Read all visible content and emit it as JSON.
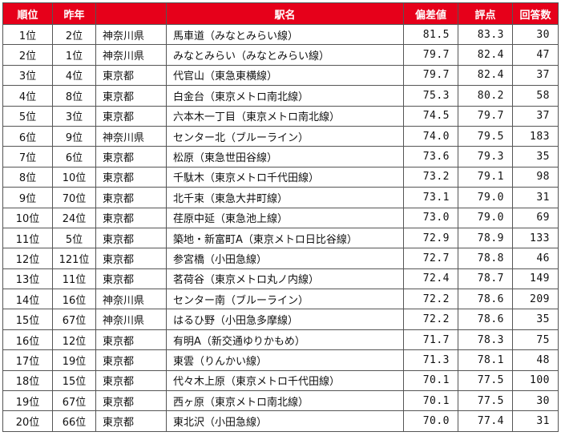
{
  "headers": {
    "rank": "順位",
    "prev": "昨年",
    "pref": "",
    "station": "駅名",
    "deviation": "偏差値",
    "score": "評点",
    "count": "回答数"
  },
  "rows": [
    {
      "rank": "1位",
      "prev": "2位",
      "pref": "神奈川県",
      "station": "馬車道（みなとみらい線）",
      "deviation": "81.5",
      "score": "83.3",
      "count": "30"
    },
    {
      "rank": "2位",
      "prev": "1位",
      "pref": "神奈川県",
      "station": "みなとみらい（みなとみらい線）",
      "deviation": "79.7",
      "score": "82.4",
      "count": "47"
    },
    {
      "rank": "3位",
      "prev": "4位",
      "pref": "東京都",
      "station": "代官山（東急東横線）",
      "deviation": "79.7",
      "score": "82.4",
      "count": "37"
    },
    {
      "rank": "4位",
      "prev": "8位",
      "pref": "東京都",
      "station": "白金台（東京メトロ南北線）",
      "deviation": "75.3",
      "score": "80.2",
      "count": "58"
    },
    {
      "rank": "5位",
      "prev": "3位",
      "pref": "東京都",
      "station": "六本木一丁目（東京メトロ南北線）",
      "deviation": "74.5",
      "score": "79.7",
      "count": "37"
    },
    {
      "rank": "6位",
      "prev": "9位",
      "pref": "神奈川県",
      "station": "センター北（ブルーライン）",
      "deviation": "74.0",
      "score": "79.5",
      "count": "183"
    },
    {
      "rank": "7位",
      "prev": "6位",
      "pref": "東京都",
      "station": "松原（東急世田谷線）",
      "deviation": "73.6",
      "score": "79.3",
      "count": "35"
    },
    {
      "rank": "8位",
      "prev": "10位",
      "pref": "東京都",
      "station": "千駄木（東京メトロ千代田線）",
      "deviation": "73.2",
      "score": "79.1",
      "count": "98"
    },
    {
      "rank": "9位",
      "prev": "70位",
      "pref": "東京都",
      "station": "北千束（東急大井町線）",
      "deviation": "73.1",
      "score": "79.0",
      "count": "31"
    },
    {
      "rank": "10位",
      "prev": "24位",
      "pref": "東京都",
      "station": "荏原中延（東急池上線）",
      "deviation": "73.0",
      "score": "79.0",
      "count": "69"
    },
    {
      "rank": "11位",
      "prev": "5位",
      "pref": "東京都",
      "station": "築地・新富町A（東京メトロ日比谷線）",
      "deviation": "72.9",
      "score": "78.9",
      "count": "133"
    },
    {
      "rank": "12位",
      "prev": "121位",
      "pref": "東京都",
      "station": "参宮橋（小田急線）",
      "deviation": "72.7",
      "score": "78.8",
      "count": "46"
    },
    {
      "rank": "13位",
      "prev": "11位",
      "pref": "東京都",
      "station": "茗荷谷（東京メトロ丸ノ内線）",
      "deviation": "72.4",
      "score": "78.7",
      "count": "149"
    },
    {
      "rank": "14位",
      "prev": "16位",
      "pref": "神奈川県",
      "station": "センター南（ブルーライン）",
      "deviation": "72.2",
      "score": "78.6",
      "count": "209"
    },
    {
      "rank": "15位",
      "prev": "67位",
      "pref": "神奈川県",
      "station": "はるひ野（小田急多摩線）",
      "deviation": "72.2",
      "score": "78.6",
      "count": "35"
    },
    {
      "rank": "16位",
      "prev": "12位",
      "pref": "東京都",
      "station": "有明A（新交通ゆりかもめ）",
      "deviation": "71.7",
      "score": "78.3",
      "count": "75"
    },
    {
      "rank": "17位",
      "prev": "19位",
      "pref": "東京都",
      "station": "東雲（りんかい線）",
      "deviation": "71.3",
      "score": "78.1",
      "count": "48"
    },
    {
      "rank": "18位",
      "prev": "15位",
      "pref": "東京都",
      "station": "代々木上原（東京メトロ千代田線）",
      "deviation": "70.1",
      "score": "77.5",
      "count": "100"
    },
    {
      "rank": "19位",
      "prev": "67位",
      "pref": "東京都",
      "station": "西ヶ原（東京メトロ南北線）",
      "deviation": "70.1",
      "score": "77.5",
      "count": "30"
    },
    {
      "rank": "20位",
      "prev": "66位",
      "pref": "東京都",
      "station": "東北沢（小田急線）",
      "deviation": "70.0",
      "score": "77.4",
      "count": "31"
    }
  ],
  "colors": {
    "header_bg": "#e6001a",
    "header_text": "#ffffff",
    "border": "#555555"
  }
}
